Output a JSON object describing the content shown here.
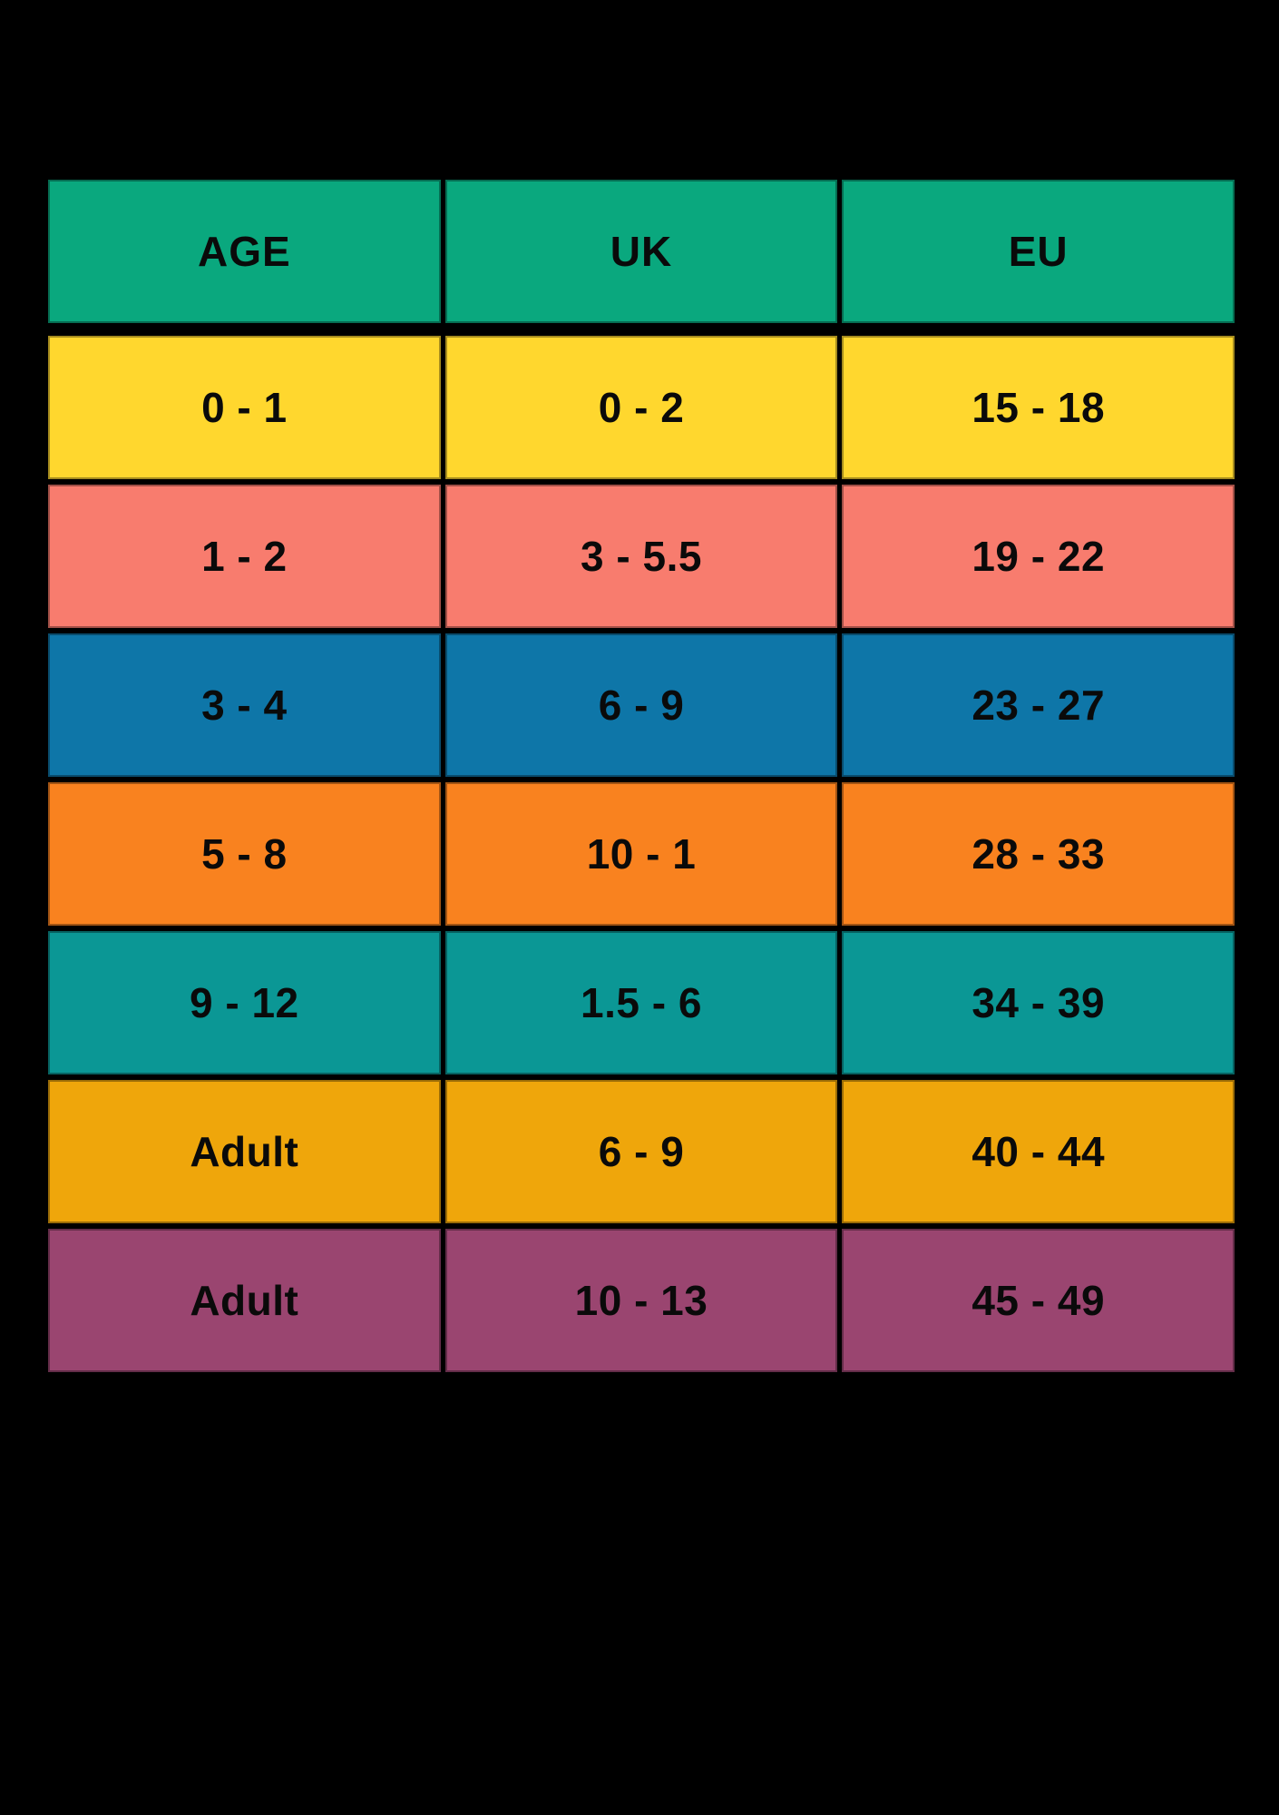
{
  "chart_data": {
    "type": "table",
    "title": "",
    "columns": [
      "AGE",
      "UK",
      "EU"
    ],
    "rows": [
      [
        "0 - 1",
        "0 - 2",
        "15 - 18"
      ],
      [
        "1 - 2",
        "3 - 5.5",
        "19 - 22"
      ],
      [
        "3 - 4",
        "6 - 9",
        "23 - 27"
      ],
      [
        "5 - 8",
        "10 - 1",
        "28 - 33"
      ],
      [
        "9 - 12",
        "1.5 - 6",
        "34 - 39"
      ],
      [
        "Adult",
        "6 - 9",
        "40 - 44"
      ],
      [
        "Adult",
        "10 - 13",
        "45 - 49"
      ]
    ]
  },
  "style": {
    "background": "#000000",
    "text_color": "#0A0A0A",
    "header_bg": "#0AA87E",
    "row_colors": [
      "#FFD72E",
      "#F87C6E",
      "#0E76A8",
      "#F9821F",
      "#0B9795",
      "#EFA60B",
      "#9A4570"
    ]
  }
}
